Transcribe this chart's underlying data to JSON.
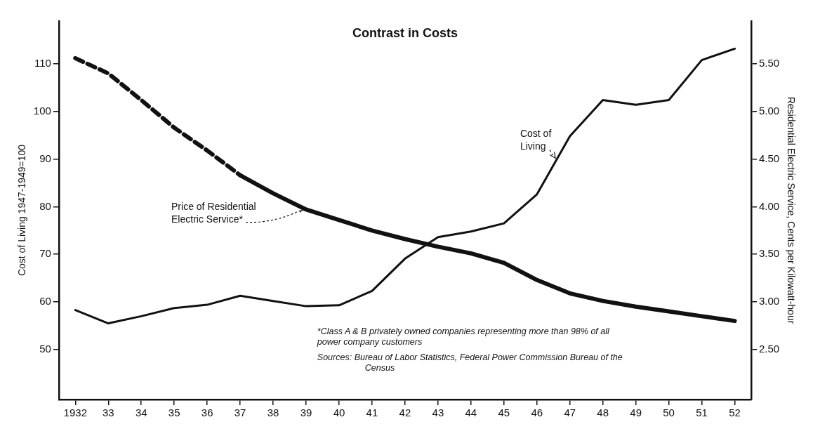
{
  "chart_data": {
    "type": "line",
    "title": "Contrast in Costs",
    "ylabel": "Cost of Living 1947-1949=100",
    "y2label": "Residential Electric Service, Cents per Kilowatt-hour",
    "categories": [
      "1932",
      "33",
      "34",
      "35",
      "36",
      "37",
      "38",
      "39",
      "40",
      "41",
      "42",
      "43",
      "44",
      "45",
      "46",
      "47",
      "48",
      "49",
      "50",
      "51",
      "52"
    ],
    "series": [
      {
        "name": "Cost of Living",
        "color": "#111111",
        "axis": "y",
        "line_style": "solid",
        "values": [
          58.3,
          55.5,
          57,
          58.7,
          59.4,
          61.3,
          60.2,
          59.1,
          59.3,
          62.3,
          69.1,
          73.6,
          74.8,
          76.5,
          82.6,
          94.8,
          102.4,
          101.4,
          102.4,
          110.8,
          113.2
        ]
      },
      {
        "color": "#111111",
        "axis": "y2",
        "line_style": "dashed",
        "values": [
          5.56,
          5.4,
          5.12,
          4.83,
          4.59,
          4.33,
          null,
          null,
          null,
          null,
          null,
          null,
          null,
          null,
          null,
          null,
          null,
          null,
          null,
          null,
          null
        ]
      },
      {
        "name": "Price of Residential Electric Service*",
        "color": "#111111",
        "axis": "y2",
        "line_style": "solid",
        "values": [
          null,
          null,
          null,
          null,
          null,
          4.33,
          4.14,
          3.97,
          3.86,
          3.75,
          3.66,
          3.58,
          3.51,
          3.41,
          3.23,
          3.09,
          3.01,
          2.95,
          2.9,
          2.85,
          2.8
        ]
      }
    ],
    "ylim": [
      39.5,
      119
    ],
    "yticks": [
      50,
      60,
      70,
      80,
      90,
      100,
      110
    ],
    "y2lim": [
      1.975,
      5.95
    ],
    "y2ticks": [
      {
        "value": 2.5,
        "label": "2.50"
      },
      {
        "value": 3,
        "label": "3.00"
      },
      {
        "value": 3.5,
        "label": "3.50"
      },
      {
        "value": 4,
        "label": "4.00"
      },
      {
        "value": 4.5,
        "label": "4.50"
      },
      {
        "value": 5,
        "label": "5.00"
      },
      {
        "value": 5.5,
        "label": "5.50"
      }
    ],
    "grid": false,
    "legend": false,
    "marker": "none",
    "annotations": [
      "*Class A & B privately owned companies representing more than 98% of all power company customers",
      "Sources: Bureau of Labor Statistics, Federal Power Commission Bureau of the Census"
    ]
  }
}
